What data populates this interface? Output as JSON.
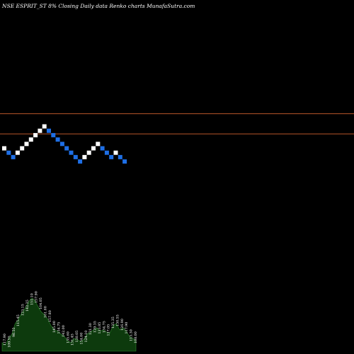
{
  "header": {
    "symbol": "NSE ESPRIT_ST",
    "change": "8%",
    "description": "Closing Daily data  Renko  charts MunafaSutra.com"
  },
  "colors": {
    "background": "#000000",
    "brick_up": "#ffffff",
    "brick_down": "#1e6fe6",
    "reference_line": "#b8562a",
    "volume_fill": "#0d3a0d",
    "volume_outline": "#2e8b2e",
    "text": "#ffffff"
  },
  "chart_data": {
    "type": "renko",
    "brick_directions": [
      "up",
      "down",
      "down",
      "up",
      "up",
      "up",
      "up",
      "up",
      "up",
      "up",
      "down",
      "down",
      "down",
      "down",
      "down",
      "down",
      "down",
      "down",
      "up",
      "up",
      "up",
      "up",
      "down",
      "down",
      "down",
      "up",
      "down",
      "down"
    ],
    "brick_levels": [
      22,
      21,
      20,
      21,
      22,
      23,
      24,
      25,
      26,
      27,
      26,
      25,
      24,
      23,
      22,
      21,
      20,
      19,
      20,
      21,
      22,
      23,
      22,
      21,
      20,
      21,
      20,
      19
    ],
    "reference_lines": [
      29.4,
      24.8
    ],
    "volume": {
      "values": [
        40,
        30,
        60,
        80,
        130,
        150,
        180,
        200,
        230,
        250,
        240,
        210,
        185,
        170,
        150,
        120,
        100,
        95,
        80,
        70,
        50,
        40,
        60,
        55,
        45,
        55,
        80,
        90,
        100,
        110,
        95,
        100,
        90,
        85,
        120,
        130,
        100,
        110,
        95,
        70,
        60,
        50
      ]
    },
    "volume_labels": [
      "117.90",
      "109.55",
      "98.55",
      "115.45",
      "123.15",
      "142.25",
      "151.10",
      "157.90",
      "164.05",
      "161.60",
      "157.80",
      "145.00",
      "134.75",
      "142.00",
      "135.60",
      "131.45",
      "130.05",
      "134.00",
      "124.10",
      "121.30",
      "129.35",
      "133.85",
      "134.75",
      "137.05",
      "135.35",
      "130.55",
      "126.90",
      "117.90",
      "113.30",
      "108.00"
    ]
  }
}
